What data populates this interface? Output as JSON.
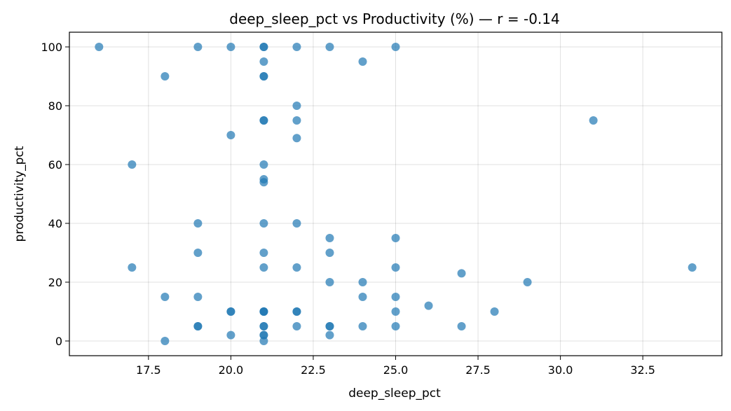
{
  "chart_data": {
    "type": "scatter",
    "title": "deep_sleep_pct vs Productivity (%)  —  r = -0.14",
    "xlabel": "deep_sleep_pct",
    "ylabel": "productivity_pct",
    "xlim": [
      15.1,
      34.9
    ],
    "ylim": [
      -5,
      105
    ],
    "xticks": [
      17.5,
      20.0,
      22.5,
      25.0,
      27.5,
      30.0,
      32.5
    ],
    "xtick_labels": [
      "17.5",
      "20.0",
      "22.5",
      "25.0",
      "27.5",
      "30.0",
      "32.5"
    ],
    "yticks": [
      0,
      20,
      40,
      60,
      80,
      100
    ],
    "ytick_labels": [
      "0",
      "20",
      "40",
      "60",
      "80",
      "100"
    ],
    "grid": true,
    "marker_color": "#1f77b4",
    "points": [
      {
        "x": 16,
        "y": 100
      },
      {
        "x": 19,
        "y": 100
      },
      {
        "x": 20,
        "y": 100
      },
      {
        "x": 21,
        "y": 100
      },
      {
        "x": 21,
        "y": 100
      },
      {
        "x": 22,
        "y": 100
      },
      {
        "x": 23,
        "y": 100
      },
      {
        "x": 25,
        "y": 100
      },
      {
        "x": 18,
        "y": 90
      },
      {
        "x": 21,
        "y": 95
      },
      {
        "x": 24,
        "y": 95
      },
      {
        "x": 21,
        "y": 90
      },
      {
        "x": 21,
        "y": 90
      },
      {
        "x": 22,
        "y": 80
      },
      {
        "x": 21,
        "y": 75
      },
      {
        "x": 21,
        "y": 75
      },
      {
        "x": 22,
        "y": 75
      },
      {
        "x": 31,
        "y": 75
      },
      {
        "x": 20,
        "y": 70
      },
      {
        "x": 22,
        "y": 69
      },
      {
        "x": 17,
        "y": 60
      },
      {
        "x": 21,
        "y": 60
      },
      {
        "x": 21,
        "y": 55
      },
      {
        "x": 21,
        "y": 54
      },
      {
        "x": 19,
        "y": 40
      },
      {
        "x": 21,
        "y": 40
      },
      {
        "x": 22,
        "y": 40
      },
      {
        "x": 23,
        "y": 35
      },
      {
        "x": 25,
        "y": 35
      },
      {
        "x": 19,
        "y": 30
      },
      {
        "x": 21,
        "y": 30
      },
      {
        "x": 23,
        "y": 30
      },
      {
        "x": 17,
        "y": 25
      },
      {
        "x": 21,
        "y": 25
      },
      {
        "x": 22,
        "y": 25
      },
      {
        "x": 25,
        "y": 25
      },
      {
        "x": 34,
        "y": 25
      },
      {
        "x": 27,
        "y": 23
      },
      {
        "x": 23,
        "y": 20
      },
      {
        "x": 24,
        "y": 20
      },
      {
        "x": 29,
        "y": 20
      },
      {
        "x": 18,
        "y": 15
      },
      {
        "x": 19,
        "y": 15
      },
      {
        "x": 24,
        "y": 15
      },
      {
        "x": 25,
        "y": 15
      },
      {
        "x": 26,
        "y": 12
      },
      {
        "x": 20,
        "y": 10
      },
      {
        "x": 20,
        "y": 10
      },
      {
        "x": 21,
        "y": 10
      },
      {
        "x": 21,
        "y": 10
      },
      {
        "x": 21,
        "y": 10
      },
      {
        "x": 22,
        "y": 10
      },
      {
        "x": 22,
        "y": 10
      },
      {
        "x": 25,
        "y": 10
      },
      {
        "x": 28,
        "y": 10
      },
      {
        "x": 19,
        "y": 5
      },
      {
        "x": 19,
        "y": 5
      },
      {
        "x": 21,
        "y": 5
      },
      {
        "x": 21,
        "y": 5
      },
      {
        "x": 22,
        "y": 5
      },
      {
        "x": 23,
        "y": 5
      },
      {
        "x": 23,
        "y": 5
      },
      {
        "x": 24,
        "y": 5
      },
      {
        "x": 25,
        "y": 5
      },
      {
        "x": 27,
        "y": 5
      },
      {
        "x": 20,
        "y": 2
      },
      {
        "x": 21,
        "y": 2
      },
      {
        "x": 21,
        "y": 2
      },
      {
        "x": 23,
        "y": 2
      },
      {
        "x": 18,
        "y": 0
      },
      {
        "x": 21,
        "y": 0
      }
    ]
  }
}
